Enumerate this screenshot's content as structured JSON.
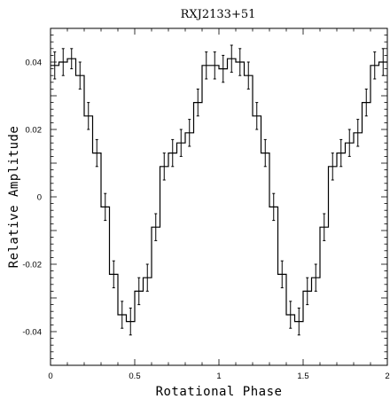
{
  "chart_data": {
    "type": "line",
    "title": "RXJ2133+51",
    "xlabel": "Rotational Phase",
    "ylabel": "Relative Amplitude",
    "xlim": [
      0,
      2
    ],
    "ylim": [
      -0.05,
      0.05
    ],
    "x_ticks": [
      {
        "value": 0,
        "label": "0"
      },
      {
        "value": 0.5,
        "label": "0.5"
      },
      {
        "value": 1,
        "label": "1"
      },
      {
        "value": 1.5,
        "label": "1.5"
      },
      {
        "value": 2,
        "label": "2"
      }
    ],
    "y_ticks": [
      {
        "value": -0.04,
        "label": "-0.04"
      },
      {
        "value": -0.02,
        "label": "-0.02"
      },
      {
        "value": 0,
        "label": "0"
      },
      {
        "value": 0.02,
        "label": "0.02"
      },
      {
        "value": 0.04,
        "label": "0.04"
      }
    ],
    "grid": false,
    "step_style": "histogram",
    "bin_width": 0.05,
    "series": [
      {
        "x": [
          0.025,
          0.075,
          0.125,
          0.175,
          0.225,
          0.275,
          0.325,
          0.375,
          0.425,
          0.475,
          0.525,
          0.575,
          0.625,
          0.675,
          0.725,
          0.775,
          0.825,
          0.875,
          0.925,
          0.975,
          1.025,
          1.075,
          1.125,
          1.175,
          1.225,
          1.275,
          1.325,
          1.375,
          1.425,
          1.475,
          1.525,
          1.575,
          1.625,
          1.675,
          1.725,
          1.775,
          1.825,
          1.875,
          1.925,
          1.975
        ],
        "y": [
          0.039,
          0.04,
          0.041,
          0.036,
          0.024,
          0.013,
          -0.003,
          -0.023,
          -0.035,
          -0.037,
          -0.028,
          -0.024,
          -0.009,
          0.009,
          0.013,
          0.016,
          0.019,
          0.028,
          0.039,
          0.039,
          0.038,
          0.041,
          0.04,
          0.036,
          0.024,
          0.013,
          -0.003,
          -0.023,
          -0.035,
          -0.037,
          -0.028,
          -0.024,
          -0.009,
          0.009,
          0.013,
          0.016,
          0.019,
          0.028,
          0.039,
          0.04
        ],
        "error": [
          0.004,
          0.004,
          0.003,
          0.004,
          0.004,
          0.004,
          0.004,
          0.004,
          0.004,
          0.004,
          0.004,
          0.004,
          0.004,
          0.004,
          0.004,
          0.004,
          0.004,
          0.004,
          0.004,
          0.004,
          0.004,
          0.004,
          0.004,
          0.004,
          0.004,
          0.004,
          0.004,
          0.004,
          0.004,
          0.004,
          0.004,
          0.004,
          0.004,
          0.004,
          0.004,
          0.004,
          0.004,
          0.004,
          0.004,
          0.004
        ]
      }
    ]
  }
}
